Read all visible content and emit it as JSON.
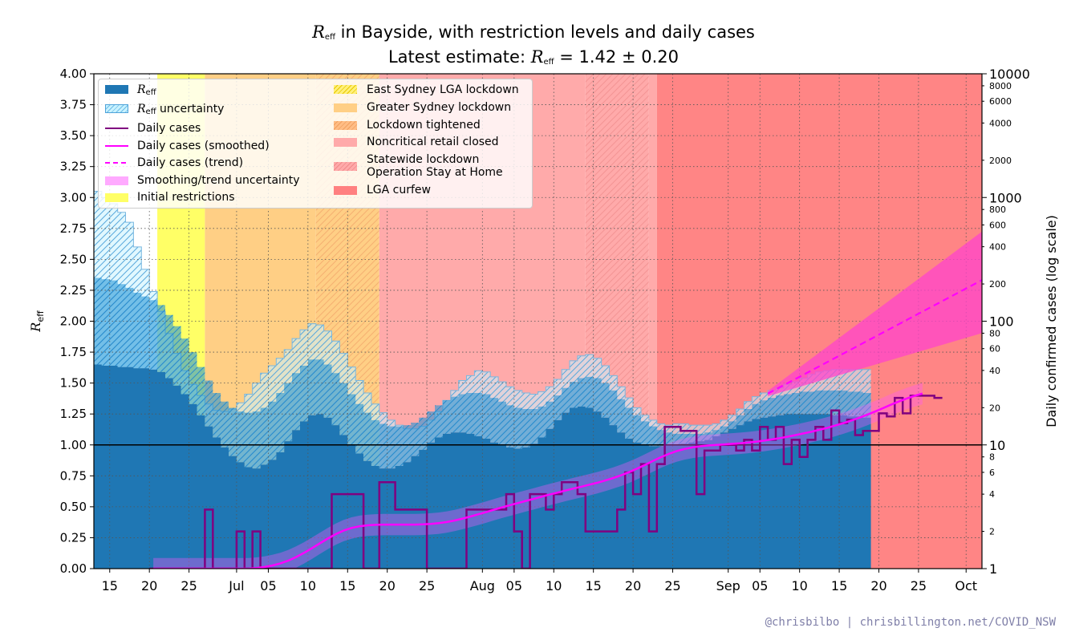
{
  "title": {
    "line1_main": "R",
    "line1_sub": "eff",
    "line1_rest": " in Bayside, with restriction levels and daily cases",
    "line2_prefix": "Latest estimate: ",
    "line2_main": "R",
    "line2_sub": "eff",
    "line2_value": " = 1.42 ± 0.20"
  },
  "credit": "@chrisbilbo | chrisbillington.net/COVID_NSW",
  "colors": {
    "reff": "#1f77b4",
    "uncertainty_fill": "#c8f2ff",
    "cases": "#800080",
    "smoothed": "#ff00ff",
    "trend": "#ff00ff",
    "initial": "#ffff66",
    "east_sydney": "#ffe34a",
    "greater_sydney": "#ffcf85",
    "tightened": "#ffb47a",
    "noncritical": "#ffaaaa",
    "statewide": "#ff9f9f",
    "curfew": "#ff8585"
  },
  "legend": {
    "reff_main": "R",
    "reff_sub": "eff",
    "unc_main": "R",
    "unc_sub": "eff",
    "unc_rest": " uncertainty",
    "daily_cases": "Daily cases",
    "smoothed": "Daily cases (smoothed)",
    "trend": "Daily cases (trend)",
    "smoothing_unc": "Smoothing/trend uncertainty",
    "initial": "Initial restrictions",
    "east_sydney": "East Sydney LGA lockdown",
    "greater_sydney": "Greater Sydney lockdown",
    "tightened": "Lockdown tightened",
    "noncritical": "Noncritical retail closed",
    "statewide_line1": "Statewide lockdown",
    "statewide_line2": "Operation Stay at Home",
    "curfew": "LGA curfew"
  },
  "chart_data": {
    "type": "line",
    "x_start": "2021-06-13",
    "x_end": "2021-10-03",
    "y_left": {
      "label_main": "R",
      "label_sub": "eff",
      "range": [
        0,
        4
      ],
      "ticks": [
        "0.00",
        "0.25",
        "0.50",
        "0.75",
        "1.00",
        "1.25",
        "1.50",
        "1.75",
        "2.00",
        "2.25",
        "2.50",
        "2.75",
        "3.00",
        "3.25",
        "3.50",
        "3.75",
        "4.00"
      ]
    },
    "y_right": {
      "label": "Daily confirmed cases (log scale)",
      "scale": "log",
      "range": [
        1,
        10000
      ],
      "major_ticks": [
        "1",
        "10",
        "100",
        "1000",
        "10000"
      ],
      "minor_ticks": [
        "2",
        "4",
        "6",
        "8",
        "20",
        "40",
        "60",
        "80",
        "200",
        "400",
        "600",
        "800",
        "2000",
        "4000",
        "6000",
        "8000"
      ]
    },
    "x_ticks": [
      {
        "date": "2021-06-15",
        "label": "15"
      },
      {
        "date": "2021-06-20",
        "label": "20"
      },
      {
        "date": "2021-06-25",
        "label": "25"
      },
      {
        "date": "2021-07-01",
        "label": "Jul"
      },
      {
        "date": "2021-07-05",
        "label": "05"
      },
      {
        "date": "2021-07-10",
        "label": "10"
      },
      {
        "date": "2021-07-15",
        "label": "15"
      },
      {
        "date": "2021-07-20",
        "label": "20"
      },
      {
        "date": "2021-07-25",
        "label": "25"
      },
      {
        "date": "2021-08-01",
        "label": "Aug"
      },
      {
        "date": "2021-08-05",
        "label": "05"
      },
      {
        "date": "2021-08-10",
        "label": "10"
      },
      {
        "date": "2021-08-15",
        "label": "15"
      },
      {
        "date": "2021-08-20",
        "label": "20"
      },
      {
        "date": "2021-08-25",
        "label": "25"
      },
      {
        "date": "2021-09-01",
        "label": "Sep"
      },
      {
        "date": "2021-09-05",
        "label": "05"
      },
      {
        "date": "2021-09-10",
        "label": "10"
      },
      {
        "date": "2021-09-15",
        "label": "15"
      },
      {
        "date": "2021-09-20",
        "label": "20"
      },
      {
        "date": "2021-09-25",
        "label": "25"
      },
      {
        "date": "2021-10-01",
        "label": "Oct"
      }
    ],
    "restrictions": [
      {
        "key": "white",
        "start": "2021-06-13",
        "end": "2021-06-21"
      },
      {
        "key": "initial",
        "start": "2021-06-21",
        "end": "2021-06-27"
      },
      {
        "key": "greater_sydney",
        "start": "2021-06-27",
        "end": "2021-07-11"
      },
      {
        "key": "tightened",
        "start": "2021-07-11",
        "end": "2021-07-19"
      },
      {
        "key": "noncritical",
        "start": "2021-07-19",
        "end": "2021-08-14"
      },
      {
        "key": "statewide",
        "start": "2021-08-14",
        "end": "2021-08-22"
      },
      {
        "key": "noncritical",
        "start": "2021-08-22",
        "end": "2021-08-23"
      },
      {
        "key": "curfew",
        "start": "2021-08-23",
        "end": "2021-10-03"
      }
    ],
    "reff_start": "2021-06-13",
    "reff": [
      2.35,
      2.34,
      2.33,
      2.3,
      2.27,
      2.23,
      2.2,
      2.17,
      2.13,
      2.05,
      1.96,
      1.86,
      1.75,
      1.63,
      1.52,
      1.42,
      1.35,
      1.3,
      1.27,
      1.26,
      1.27,
      1.3,
      1.35,
      1.42,
      1.5,
      1.58,
      1.64,
      1.69,
      1.69,
      1.65,
      1.58,
      1.5,
      1.41,
      1.33,
      1.26,
      1.2,
      1.17,
      1.15,
      1.15,
      1.16,
      1.18,
      1.22,
      1.27,
      1.32,
      1.36,
      1.39,
      1.41,
      1.42,
      1.42,
      1.41,
      1.38,
      1.35,
      1.32,
      1.3,
      1.29,
      1.29,
      1.31,
      1.35,
      1.4,
      1.46,
      1.51,
      1.54,
      1.55,
      1.54,
      1.5,
      1.44,
      1.37,
      1.3,
      1.24,
      1.19,
      1.15,
      1.12,
      1.1,
      1.09,
      1.09,
      1.09,
      1.09,
      1.1,
      1.12,
      1.15,
      1.19,
      1.24,
      1.29,
      1.33,
      1.36,
      1.38,
      1.4,
      1.41,
      1.42,
      1.43,
      1.43,
      1.44,
      1.44,
      1.44,
      1.44,
      1.43,
      1.43,
      1.42
    ],
    "reff_lower": [
      1.65,
      1.64,
      1.64,
      1.63,
      1.63,
      1.62,
      1.62,
      1.61,
      1.59,
      1.54,
      1.48,
      1.41,
      1.33,
      1.24,
      1.15,
      1.06,
      0.98,
      0.91,
      0.86,
      0.82,
      0.81,
      0.84,
      0.88,
      0.94,
      1.03,
      1.12,
      1.19,
      1.24,
      1.25,
      1.22,
      1.16,
      1.08,
      1.0,
      0.93,
      0.87,
      0.83,
      0.81,
      0.81,
      0.83,
      0.86,
      0.91,
      0.96,
      1.02,
      1.06,
      1.09,
      1.1,
      1.1,
      1.09,
      1.07,
      1.05,
      1.02,
      1.0,
      0.98,
      0.97,
      0.98,
      1.01,
      1.06,
      1.13,
      1.2,
      1.26,
      1.3,
      1.31,
      1.3,
      1.27,
      1.22,
      1.16,
      1.1,
      1.05,
      1.02,
      1.0,
      0.99,
      0.99,
      1.0,
      1.0,
      1.01,
      1.02,
      1.03,
      1.04,
      1.07,
      1.1,
      1.13,
      1.16,
      1.19,
      1.21,
      1.22,
      1.23,
      1.24,
      1.25,
      1.25,
      1.25,
      1.25,
      1.25,
      1.25,
      1.24,
      1.24,
      1.23,
      1.23,
      1.22
    ],
    "reff_upper": [
      3.05,
      3.0,
      2.95,
      2.88,
      2.8,
      2.6,
      2.42,
      2.24,
      2.08,
      1.9,
      1.74,
      1.6,
      1.49,
      1.4,
      1.33,
      1.28,
      1.27,
      1.29,
      1.34,
      1.41,
      1.5,
      1.58,
      1.64,
      1.7,
      1.77,
      1.86,
      1.93,
      1.98,
      1.97,
      1.92,
      1.84,
      1.74,
      1.63,
      1.52,
      1.42,
      1.33,
      1.26,
      1.2,
      1.16,
      1.13,
      1.13,
      1.15,
      1.2,
      1.27,
      1.36,
      1.44,
      1.52,
      1.56,
      1.6,
      1.59,
      1.55,
      1.51,
      1.47,
      1.44,
      1.42,
      1.41,
      1.43,
      1.47,
      1.53,
      1.61,
      1.68,
      1.72,
      1.73,
      1.7,
      1.64,
      1.56,
      1.47,
      1.38,
      1.3,
      1.24,
      1.2,
      1.17,
      1.16,
      1.17,
      1.17,
      1.16,
      1.16,
      1.16,
      1.17,
      1.2,
      1.24,
      1.29,
      1.35,
      1.39,
      1.42,
      1.44,
      1.46,
      1.49,
      1.51,
      1.54,
      1.57,
      1.59,
      1.6,
      1.61,
      1.61,
      1.61,
      1.61,
      1.61
    ],
    "cases_start": "2021-06-20",
    "cases": [
      0,
      0,
      0,
      0,
      0,
      0,
      0,
      3,
      0,
      0,
      0,
      2,
      0,
      2,
      0,
      0,
      0,
      0,
      0,
      0,
      0,
      0,
      0,
      4,
      4,
      4,
      4,
      0,
      0,
      5,
      5,
      3,
      3,
      3,
      3,
      0,
      0,
      0,
      0,
      0,
      3,
      3,
      3,
      3,
      3,
      4,
      2,
      0,
      4,
      4,
      3,
      4,
      5,
      5,
      4,
      2,
      2,
      2,
      2,
      3,
      6,
      4,
      7,
      2,
      7,
      14,
      14,
      13,
      13,
      4,
      9,
      9,
      10,
      10,
      9,
      11,
      9,
      14,
      11,
      14,
      7,
      11,
      8,
      11,
      14,
      11,
      19,
      15,
      16,
      12,
      13,
      13,
      18,
      17,
      24,
      18,
      25,
      25,
      25,
      24
    ],
    "smoothed": [
      1.0,
      1.0,
      1.0,
      1.0,
      1.0,
      1.0,
      1.0,
      1.0,
      1.0,
      1.0,
      1.0,
      1.0,
      1.0,
      1.01,
      1.03,
      1.06,
      1.1,
      1.16,
      1.24,
      1.34,
      1.46,
      1.6,
      1.75,
      1.9,
      2.03,
      2.13,
      2.2,
      2.24,
      2.26,
      2.27,
      2.27,
      2.27,
      2.27,
      2.27,
      2.28,
      2.3,
      2.33,
      2.38,
      2.45,
      2.54,
      2.64,
      2.75,
      2.87,
      3.0,
      3.13,
      3.26,
      3.39,
      3.53,
      3.67,
      3.82,
      3.97,
      4.12,
      4.28,
      4.44,
      4.6,
      4.77,
      4.95,
      5.16,
      5.4,
      5.68,
      6.02,
      6.42,
      6.89,
      7.41,
      7.95,
      8.46,
      8.92,
      9.28,
      9.55,
      9.75,
      9.9,
      10.0,
      10.1,
      10.2,
      10.3,
      10.45,
      10.62,
      10.83,
      11.07,
      11.35,
      11.66,
      12.0,
      12.38,
      12.79,
      13.25,
      13.76,
      14.33,
      14.98,
      15.72,
      16.56,
      17.52,
      18.6,
      19.8,
      21.1,
      22.4,
      23.7,
      24.9,
      26.0
    ],
    "smoothed_lower_factor": [
      1.0,
      1.0,
      1.0,
      1.0,
      1.0,
      1.0,
      1.0,
      1.0,
      1.0,
      1.0,
      1.0,
      1.0,
      1.0,
      1.0,
      1.0,
      1.0,
      1.0,
      1.0,
      1.0,
      1.0,
      1.0,
      1.0,
      1.0,
      1.0,
      1.0,
      1.0,
      1.0,
      1.0,
      1.0,
      1.0,
      1.0,
      1.0,
      1.0,
      1.0,
      1.0,
      1.0,
      1.0,
      1.0,
      1.0,
      1.0,
      1.0,
      1.0,
      1.0,
      1.0,
      1.0,
      1.0,
      1.0,
      1.0,
      1.0,
      1.0,
      1.0,
      1.0,
      1.0,
      1.0,
      1.0,
      1.0,
      1.0,
      1.0,
      1.0,
      1.0,
      1.0,
      1.0,
      1.0,
      1.0,
      1.0,
      1.0,
      1.0,
      1.0,
      1.0,
      1.0,
      1.0,
      1.0,
      1.0,
      1.0,
      1.0,
      1.0,
      1.0,
      1.0,
      1.0,
      1.0,
      1.0,
      1.0,
      1.0,
      1.0,
      1.0,
      1.0,
      1.0,
      1.0,
      1.0,
      1.0,
      1.0,
      1.0,
      1.0,
      1.0,
      1.0,
      1.0,
      1.0,
      1.0
    ],
    "trend_start": "2021-09-06",
    "trend_end": "2021-10-03",
    "trend_start_value": 26,
    "trend_end_value": 215,
    "trend_lower_end": 80,
    "trend_upper_end": 530
  }
}
